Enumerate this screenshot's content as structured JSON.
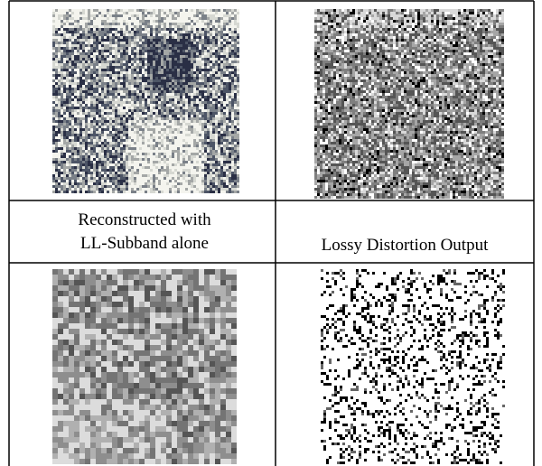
{
  "captions": {
    "left": [
      "Reconstructed with",
      "LL-Subband alone"
    ],
    "right": "Lossy Distortion Output"
  }
}
